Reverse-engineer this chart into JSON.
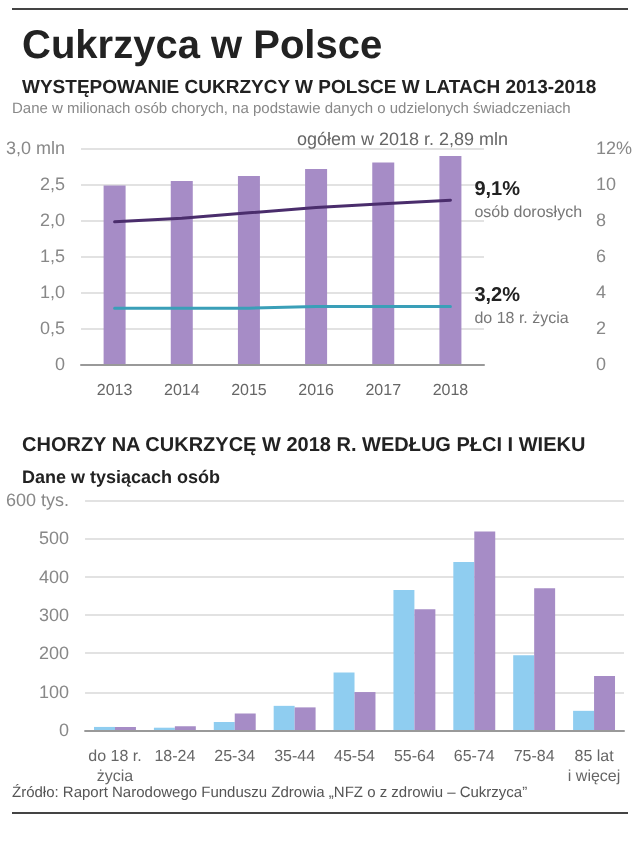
{
  "chart_data": [
    {
      "type": "bar",
      "title": "Cukrzyca w Polsce",
      "subtitle": "WYSTĘPOWANIE CUKRZYCY W POLSCE W LATACH 2013-2018",
      "annotations": [
        "Dane w milionach osób chorych, na podstawie danych o udzielonych świadczeniach",
        "ogółem w 2018 r. 2,89 mln",
        "9,1%",
        "osób dorosłych",
        "3,2%",
        "do 18 r. życia"
      ],
      "categories": [
        "2013",
        "2014",
        "2015",
        "2016",
        "2017",
        "2018"
      ],
      "series": [
        {
          "color": "#a68cc6",
          "values": [
            2.48,
            2.54,
            2.61,
            2.71,
            2.8,
            2.89
          ]
        },
        {
          "type": "line",
          "axis": "y2",
          "color": "#4a2d6c",
          "values": [
            7.9,
            8.1,
            8.4,
            8.7,
            8.9,
            9.1
          ]
        },
        {
          "type": "line",
          "axis": "y2",
          "color": "#3a9fb8",
          "values": [
            3.1,
            3.1,
            3.1,
            3.2,
            3.2,
            3.2
          ]
        }
      ],
      "ylim": [
        0,
        3
      ],
      "yticks": [
        0,
        {
          "value": 0.5,
          "label": "0,5"
        },
        {
          "value": 1,
          "label": "1,0"
        },
        {
          "value": 1.5,
          "label": "1,5"
        },
        {
          "value": 2,
          "label": "2,0"
        },
        {
          "value": 2.5,
          "label": "2,5"
        },
        {
          "value": 3,
          "label": "3,0 mln"
        }
      ],
      "y2lim": [
        0,
        12
      ],
      "y2ticks": [
        0,
        2,
        4,
        6,
        8,
        10,
        {
          "value": 12,
          "label": "12%"
        }
      ],
      "grid": "y",
      "marker": "none",
      "line_style": "solid"
    },
    {
      "type": "bar",
      "title": "CHORZY NA CUKRZYCĘ W 2018 R. WEDŁUG PŁCI I WIEKU",
      "subtitle": "Dane w tysiącach osób",
      "annotations": [
        "Źródło: Raport Narodowego Funduszu Zdrowia „NFZ o z zdrowiu – Cukrzyca”"
      ],
      "categories": [
        "do 18 r.\nżycia",
        "18-24",
        "25-34",
        "35-44",
        "45-54",
        "55-64",
        "65-74",
        "75-84",
        "85 lat\ni więcej"
      ],
      "series": [
        {
          "color": "#8fcdf0",
          "values": [
            8,
            6,
            21,
            63,
            150,
            365,
            438,
            195,
            50
          ]
        },
        {
          "color": "#a68cc6",
          "values": [
            8,
            10,
            43,
            59,
            99,
            315,
            518,
            370,
            141
          ]
        }
      ],
      "ylim": [
        0,
        600
      ],
      "yticks": [
        0,
        100,
        200,
        300,
        400,
        500,
        {
          "value": 600,
          "label": "600 tys."
        }
      ],
      "grid": "y"
    }
  ]
}
